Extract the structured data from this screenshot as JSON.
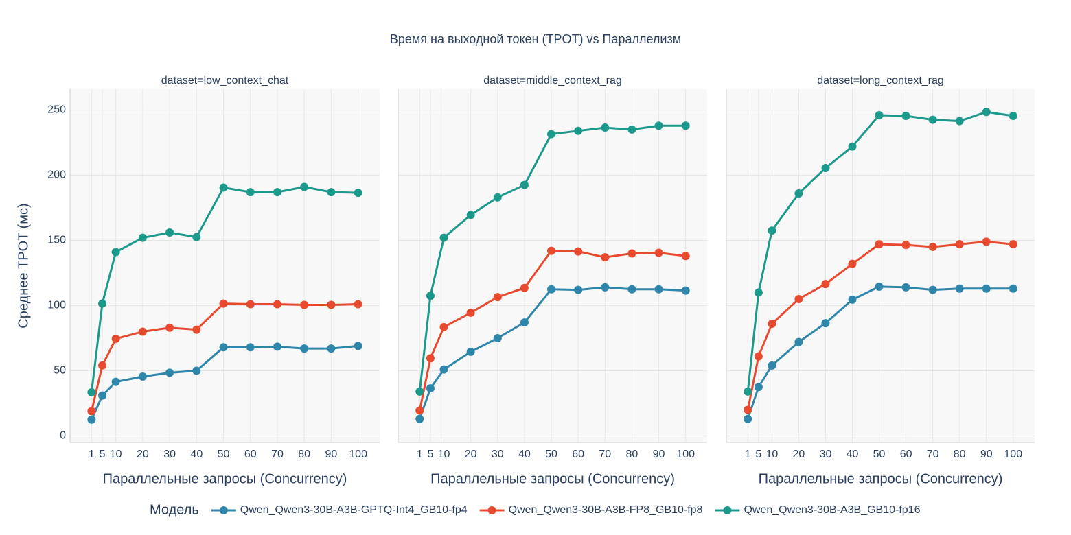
{
  "title": "Время на выходной токен (TPOT) vs Параллелизм",
  "legend_title": "Модель",
  "chart_data": [
    {
      "type": "line",
      "title": "dataset=low_context_chat",
      "x_label": "Параллельные запросы (Concurrency)",
      "y_label": "Среднее TPOT (мс)",
      "x": [
        1,
        5,
        10,
        20,
        30,
        40,
        50,
        60,
        70,
        80,
        90,
        100
      ],
      "xlim": [
        -7,
        108
      ],
      "xticks": [
        1,
        5,
        10,
        20,
        30,
        40,
        50,
        60,
        70,
        80,
        90,
        100
      ],
      "ylim": [
        -5,
        266
      ],
      "yticks": [
        0,
        50,
        100,
        150,
        200,
        250
      ],
      "grid": true,
      "series": [
        {
          "name": "Qwen_Qwen3-30B-A3B-GPTQ-Int4_GB10-fp4",
          "color": "#2e86ab",
          "values": [
            12.5,
            31,
            41.5,
            45.5,
            48.5,
            50,
            68,
            68,
            68.5,
            67,
            67,
            69
          ]
        },
        {
          "name": "Qwen_Qwen3-30B-A3B-FP8_GB10-fp8",
          "color": "#e84a2f",
          "values": [
            19,
            54,
            74.5,
            80,
            83,
            81.5,
            101.5,
            101,
            101,
            100.5,
            100.5,
            101
          ]
        },
        {
          "name": "Qwen_Qwen3-30B-A3B_GB10-fp16",
          "color": "#1b998b",
          "values": [
            33.5,
            101.5,
            141,
            152,
            156,
            152.5,
            190.5,
            187,
            187,
            191,
            187,
            186.5
          ]
        }
      ]
    },
    {
      "type": "line",
      "title": "dataset=middle_context_rag",
      "x_label": "Параллельные запросы (Concurrency)",
      "x": [
        1,
        5,
        10,
        20,
        30,
        40,
        50,
        60,
        70,
        80,
        90,
        100
      ],
      "xlim": [
        -7,
        108
      ],
      "xticks": [
        1,
        5,
        10,
        20,
        30,
        40,
        50,
        60,
        70,
        80,
        90,
        100
      ],
      "ylim": [
        -5,
        266
      ],
      "yticks": [
        0,
        50,
        100,
        150,
        200,
        250
      ],
      "grid": true,
      "series": [
        {
          "name": "Qwen_Qwen3-30B-A3B-GPTQ-Int4_GB10-fp4",
          "color": "#2e86ab",
          "values": [
            13,
            36.5,
            51,
            64.5,
            75,
            87,
            112.5,
            112,
            114,
            112.5,
            112.5,
            111.5
          ]
        },
        {
          "name": "Qwen_Qwen3-30B-A3B-FP8_GB10-fp8",
          "color": "#e84a2f",
          "values": [
            19.5,
            59.5,
            83.5,
            94.5,
            106.5,
            113.5,
            142,
            141.5,
            137,
            140,
            140.5,
            138
          ]
        },
        {
          "name": "Qwen_Qwen3-30B-A3B_GB10-fp16",
          "color": "#1b998b",
          "values": [
            34,
            107.5,
            152,
            169.5,
            183,
            192.5,
            231.5,
            234,
            236.5,
            235,
            238,
            238
          ]
        }
      ]
    },
    {
      "type": "line",
      "title": "dataset=long_context_rag",
      "x_label": "Параллельные запросы (Concurrency)",
      "x": [
        1,
        5,
        10,
        20,
        30,
        40,
        50,
        60,
        70,
        80,
        90,
        100
      ],
      "xlim": [
        -7,
        108
      ],
      "xticks": [
        1,
        5,
        10,
        20,
        30,
        40,
        50,
        60,
        70,
        80,
        90,
        100
      ],
      "ylim": [
        -5,
        266
      ],
      "yticks": [
        0,
        50,
        100,
        150,
        200,
        250
      ],
      "grid": true,
      "series": [
        {
          "name": "Qwen_Qwen3-30B-A3B-GPTQ-Int4_GB10-fp4",
          "color": "#2e86ab",
          "values": [
            13,
            37.5,
            54,
            72,
            86.5,
            104.5,
            114.5,
            114,
            112,
            113,
            113,
            113
          ]
        },
        {
          "name": "Qwen_Qwen3-30B-A3B-FP8_GB10-fp8",
          "color": "#e84a2f",
          "values": [
            20,
            61,
            86,
            105,
            116.5,
            132,
            147,
            146.5,
            145,
            147,
            149,
            147
          ]
        },
        {
          "name": "Qwen_Qwen3-30B-A3B_GB10-fp16",
          "color": "#1b998b",
          "values": [
            34,
            110,
            157.5,
            186,
            205.5,
            222,
            246,
            245.5,
            242.5,
            241.5,
            248.5,
            245.5
          ]
        }
      ]
    }
  ]
}
